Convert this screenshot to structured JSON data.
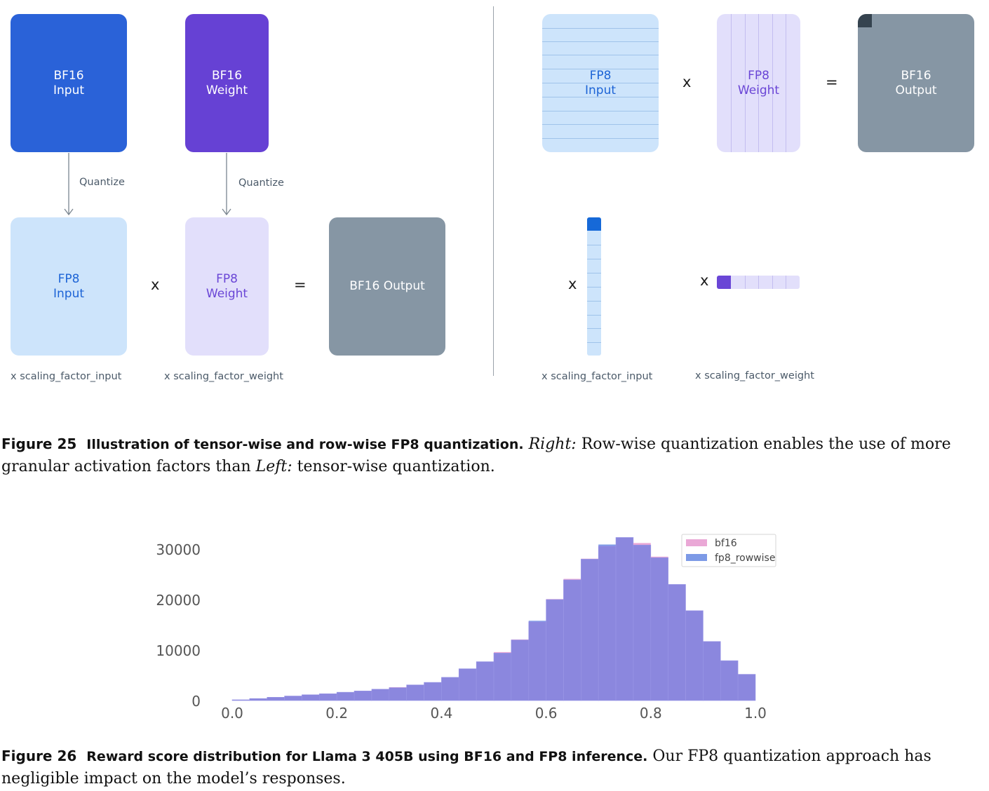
{
  "figure25": {
    "left": {
      "bf16_input": [
        "BF16",
        "Input"
      ],
      "bf16_weight": [
        "BF16",
        "Weight"
      ],
      "quantize1": "Quantize",
      "quantize2": "Quantize",
      "fp8_input": [
        "FP8",
        "Input"
      ],
      "fp8_weight": [
        "FP8",
        "Weight"
      ],
      "times": "x",
      "equals": "=",
      "bf16_output": "BF16 Output",
      "scale_input": "x scaling_factor_input",
      "scale_weight": "x scaling_factor_weight"
    },
    "right": {
      "fp8_input": [
        "FP8",
        "Input"
      ],
      "times": "x",
      "fp8_weight": [
        "FP8",
        "Weight"
      ],
      "equals": "=",
      "bf16_output": [
        "BF16",
        "Output"
      ],
      "times_input_scale": "x",
      "times_weight_scale": "x",
      "scale_input": "x scaling_factor_input",
      "scale_weight": "x scaling_factor_weight"
    },
    "caption": {
      "label": "Figure 25",
      "title": "Illustration of tensor-wise and row-wise FP8 quantization.",
      "right_em": "Right:",
      "text1": " Row-wise quantization enables the use of more granular activation factors than ",
      "left_em": "Left:",
      "text2": " tensor-wise quantization."
    }
  },
  "colors": {
    "bf16_input": "#2a62d8",
    "bf16_weight": "#6641d4",
    "fp8_input": "#cde4fb",
    "fp8_weight": "#e2dffb",
    "bf16_output": "#8696a4",
    "bf16_series": "#eaa8d6",
    "fp8_series": "#7d9ae6",
    "overlap": "#8b87de"
  },
  "chart_data": {
    "type": "bar",
    "subtype": "histogram",
    "x_ticks": [
      "0.0",
      "0.2",
      "0.4",
      "0.6",
      "0.8",
      "1.0"
    ],
    "y_ticks": [
      "0",
      "10000",
      "20000",
      "30000"
    ],
    "xlim": [
      0,
      1
    ],
    "ylim": [
      0,
      32500
    ],
    "grid": false,
    "legend_position": "top-right",
    "bin_width": 0.0333,
    "bin_starts": [
      0.0,
      0.0333,
      0.0667,
      0.1,
      0.1333,
      0.1667,
      0.2,
      0.2333,
      0.2667,
      0.3,
      0.3333,
      0.3667,
      0.4,
      0.4333,
      0.4667,
      0.5,
      0.5333,
      0.5667,
      0.6,
      0.6333,
      0.6667,
      0.7,
      0.7333,
      0.7667,
      0.8,
      0.8333,
      0.8667,
      0.9,
      0.9333,
      0.9667
    ],
    "series": [
      {
        "name": "bf16",
        "values": [
          150,
          400,
          650,
          900,
          1150,
          1350,
          1650,
          1900,
          2250,
          2650,
          3100,
          3600,
          4600,
          6300,
          7700,
          9600,
          12100,
          15600,
          20100,
          24100,
          28100,
          30600,
          32300,
          31200,
          28500,
          23000,
          17800,
          11700,
          7900,
          5200
        ]
      },
      {
        "name": "fp8_rowwise",
        "values": [
          150,
          400,
          650,
          900,
          1150,
          1350,
          1650,
          1900,
          2250,
          2550,
          3100,
          3600,
          4600,
          6300,
          7700,
          9400,
          12000,
          15800,
          20000,
          23900,
          28000,
          30900,
          32300,
          30800,
          28300,
          23000,
          17800,
          11700,
          7900,
          5200
        ]
      }
    ]
  },
  "figure26": {
    "caption": {
      "label": "Figure 26",
      "title": "Reward score distribution for Llama 3 405B using BF16 and FP8 inference.",
      "text": " Our FP8 quantization approach has negligible impact on the model’s responses."
    }
  }
}
